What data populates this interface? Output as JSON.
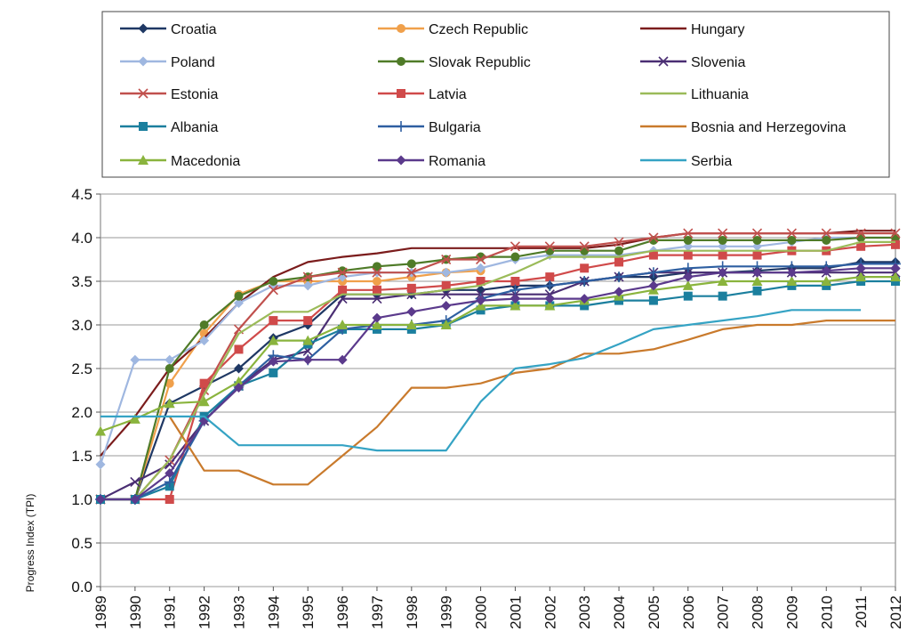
{
  "chart_data": {
    "type": "line",
    "title": "",
    "xlabel": "",
    "ylabel": "Progress Index (TPI)",
    "ylim": [
      0,
      4.5
    ],
    "y_ticks": [
      "0.0",
      "0.5",
      "1.0",
      "1.5",
      "2.0",
      "2.5",
      "3.0",
      "3.5",
      "4.0",
      "4.5"
    ],
    "categories": [
      "1989",
      "1990",
      "1991",
      "1992",
      "1993",
      "1994",
      "1995",
      "1996",
      "1997",
      "1998",
      "1999",
      "2000",
      "2001",
      "2002",
      "2003",
      "2004",
      "2005",
      "2006",
      "2007",
      "2008",
      "2009",
      "2010",
      "2011",
      "2012"
    ],
    "grid": "horizontal",
    "legend_position": "top",
    "series": [
      {
        "name": "Croatia",
        "color": "#1f3864",
        "marker": "diamond",
        "values": [
          1.0,
          1.0,
          2.1,
          2.3,
          2.5,
          2.85,
          3.0,
          3.35,
          3.35,
          3.35,
          3.4,
          3.4,
          3.45,
          3.45,
          3.5,
          3.55,
          3.55,
          3.6,
          3.6,
          3.62,
          3.65,
          3.65,
          3.72,
          3.72
        ]
      },
      {
        "name": "Czech Republic",
        "color": "#f0a04b",
        "marker": "circle",
        "values": [
          1.0,
          1.0,
          2.33,
          2.9,
          3.35,
          3.5,
          3.5,
          3.5,
          3.5,
          3.55,
          3.6,
          3.62,
          null,
          null,
          null,
          null,
          null,
          null,
          null,
          null,
          null,
          null,
          null,
          null
        ]
      },
      {
        "name": "Hungary",
        "color": "#7b1c1c",
        "marker": "none",
        "values": [
          1.5,
          1.95,
          2.5,
          2.85,
          3.25,
          3.55,
          3.72,
          3.78,
          3.82,
          3.88,
          3.88,
          3.88,
          3.88,
          3.88,
          3.88,
          3.92,
          4.0,
          4.05,
          4.05,
          4.05,
          4.05,
          4.05,
          4.08,
          4.08
        ]
      },
      {
        "name": "Poland",
        "color": "#9fb7e0",
        "marker": "diamond",
        "values": [
          1.4,
          2.6,
          2.6,
          2.82,
          3.25,
          3.45,
          3.45,
          3.55,
          3.6,
          3.6,
          3.6,
          3.65,
          3.75,
          3.8,
          3.8,
          3.8,
          3.85,
          3.9,
          3.9,
          3.9,
          3.95,
          4.0,
          4.0,
          4.0
        ]
      },
      {
        "name": "Slovak Republic",
        "color": "#4f7b28",
        "marker": "circle",
        "values": [
          1.0,
          1.0,
          2.5,
          3.0,
          3.33,
          3.5,
          3.55,
          3.62,
          3.67,
          3.7,
          3.75,
          3.78,
          3.78,
          3.85,
          3.85,
          3.85,
          3.97,
          3.97,
          3.97,
          3.97,
          3.97,
          3.97,
          4.0,
          4.0
        ]
      },
      {
        "name": "Slovenia",
        "color": "#4a2e73",
        "marker": "x",
        "values": [
          1.0,
          1.2,
          1.4,
          1.9,
          2.3,
          2.6,
          2.7,
          3.3,
          3.3,
          3.35,
          3.35,
          3.35,
          3.35,
          3.35,
          3.5,
          3.55,
          3.6,
          3.6,
          3.6,
          3.6,
          3.6,
          3.6,
          3.6,
          3.6
        ]
      },
      {
        "name": "Estonia",
        "color": "#c0504d",
        "marker": "x",
        "values": [
          1.0,
          1.0,
          1.45,
          2.25,
          2.95,
          3.4,
          3.55,
          3.6,
          3.6,
          3.6,
          3.75,
          3.75,
          3.9,
          3.9,
          3.9,
          3.95,
          4.0,
          4.05,
          4.05,
          4.05,
          4.05,
          4.05,
          4.05,
          4.05
        ]
      },
      {
        "name": "Latvia",
        "color": "#d04a4a",
        "marker": "square",
        "values": [
          1.0,
          1.0,
          1.0,
          2.33,
          2.72,
          3.05,
          3.05,
          3.4,
          3.4,
          3.42,
          3.45,
          3.5,
          3.5,
          3.55,
          3.65,
          3.72,
          3.8,
          3.8,
          3.8,
          3.8,
          3.85,
          3.85,
          3.9,
          3.92
        ]
      },
      {
        "name": "Lithuania",
        "color": "#9bbb59",
        "marker": "none",
        "values": [
          1.0,
          1.0,
          1.45,
          2.2,
          2.9,
          3.15,
          3.15,
          3.35,
          3.35,
          3.35,
          3.4,
          3.45,
          3.6,
          3.78,
          3.78,
          3.78,
          3.85,
          3.85,
          3.85,
          3.85,
          3.85,
          3.85,
          3.95,
          3.95
        ]
      },
      {
        "name": "Albania",
        "color": "#1b7f9e",
        "marker": "square",
        "values": [
          1.0,
          1.0,
          1.15,
          1.95,
          2.3,
          2.45,
          2.78,
          2.95,
          2.95,
          2.95,
          3.0,
          3.17,
          3.22,
          3.22,
          3.22,
          3.28,
          3.28,
          3.33,
          3.33,
          3.39,
          3.45,
          3.45,
          3.5,
          3.5
        ]
      },
      {
        "name": "Bulgaria",
        "color": "#2e5fa1",
        "marker": "plus",
        "values": [
          1.0,
          1.0,
          1.2,
          1.9,
          2.3,
          2.65,
          2.6,
          2.95,
          3.0,
          3.0,
          3.05,
          3.3,
          3.4,
          3.45,
          3.5,
          3.55,
          3.6,
          3.65,
          3.67,
          3.67,
          3.67,
          3.67,
          3.7,
          3.7
        ]
      },
      {
        "name": "Bosnia and Herzegovina",
        "color": "#c97a2c",
        "marker": "none",
        "values": [
          null,
          null,
          1.95,
          1.33,
          1.33,
          1.17,
          1.17,
          1.5,
          1.83,
          2.28,
          2.28,
          2.33,
          2.45,
          2.5,
          2.67,
          2.67,
          2.72,
          2.83,
          2.95,
          3.0,
          3.0,
          3.05,
          3.05,
          3.05
        ]
      },
      {
        "name": "Macedonia",
        "color": "#8ab43d",
        "marker": "triangle",
        "values": [
          1.78,
          1.92,
          2.1,
          2.12,
          2.35,
          2.82,
          2.82,
          3.0,
          3.0,
          3.0,
          3.0,
          3.22,
          3.22,
          3.22,
          3.28,
          3.33,
          3.4,
          3.45,
          3.5,
          3.5,
          3.5,
          3.5,
          3.55,
          3.55
        ]
      },
      {
        "name": "Romania",
        "color": "#5b3a8c",
        "marker": "diamond",
        "values": [
          1.0,
          1.0,
          1.3,
          1.9,
          2.28,
          2.58,
          2.6,
          2.6,
          3.08,
          3.15,
          3.22,
          3.28,
          3.3,
          3.3,
          3.3,
          3.38,
          3.45,
          3.55,
          3.6,
          3.6,
          3.6,
          3.62,
          3.65,
          3.65
        ]
      },
      {
        "name": "Serbia",
        "color": "#35a3c4",
        "marker": "none",
        "values": [
          1.95,
          1.95,
          1.95,
          1.95,
          1.62,
          1.62,
          1.62,
          1.62,
          1.56,
          1.56,
          1.56,
          2.12,
          2.5,
          2.55,
          2.62,
          2.78,
          2.95,
          3.0,
          3.05,
          3.1,
          3.17,
          3.17,
          3.17,
          null
        ]
      }
    ]
  }
}
